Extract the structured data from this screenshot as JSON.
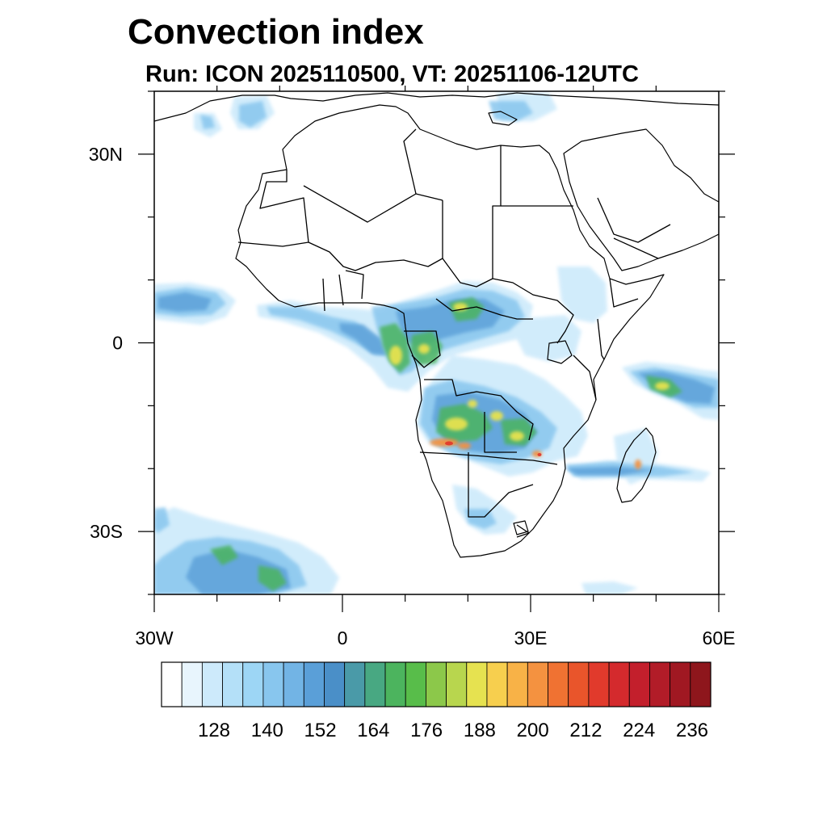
{
  "title": "Convection index",
  "subtitle": "Run: ICON 2025110500,  VT: 20251106-12UTC",
  "axes": {
    "x_ticks": [
      {
        "lon": -30,
        "label": "30W"
      },
      {
        "lon": 0,
        "label": "0"
      },
      {
        "lon": 30,
        "label": "30E"
      },
      {
        "lon": 60,
        "label": "60E"
      }
    ],
    "y_ticks": [
      {
        "lat": 30,
        "label": "30N"
      },
      {
        "lat": 0,
        "label": "0"
      },
      {
        "lat": -30,
        "label": "30S"
      }
    ],
    "lon_range": [
      -30,
      60
    ],
    "lat_range": [
      -40,
      40
    ]
  },
  "colorbar": {
    "colors": [
      "#ffffff",
      "#e8f5fd",
      "#cdeafb",
      "#b4e0f8",
      "#9dd6f5",
      "#88c6ee",
      "#72b4e5",
      "#5a9fd8",
      "#4a8fc8",
      "#4a9aa8",
      "#48a882",
      "#4cb45e",
      "#58bd4a",
      "#8cc84a",
      "#b8d64e",
      "#e6e250",
      "#f7cf4e",
      "#f8b247",
      "#f49240",
      "#f07232",
      "#e9552b",
      "#e13a2c",
      "#d42a2d",
      "#c31f2c",
      "#b21c28",
      "#a01822",
      "#8e161c"
    ],
    "labels": [
      "128",
      "140",
      "152",
      "164",
      "176",
      "188",
      "200",
      "212",
      "224",
      "236"
    ]
  }
}
